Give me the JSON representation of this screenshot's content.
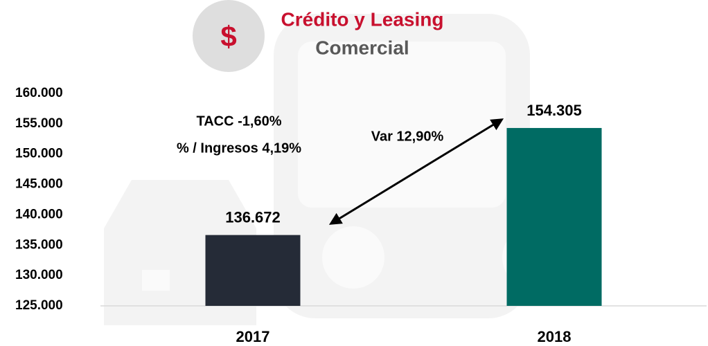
{
  "icon": "$",
  "chart_data": {
    "type": "bar",
    "title": "Crédito y Leasing",
    "subtitle": "Comercial",
    "categories": [
      "2017",
      "2018"
    ],
    "values": [
      136672,
      154305
    ],
    "value_labels": [
      "136.672",
      "154.305"
    ],
    "colors": [
      "#252b37",
      "#006b63"
    ],
    "ylim": [
      125000,
      160000
    ],
    "yticks": [
      {
        "value": 125000,
        "label": "125.000"
      },
      {
        "value": 130000,
        "label": "130.000"
      },
      {
        "value": 135000,
        "label": "135.000"
      },
      {
        "value": 140000,
        "label": "140.000"
      },
      {
        "value": 145000,
        "label": "145.000"
      },
      {
        "value": 150000,
        "label": "150.000"
      },
      {
        "value": 155000,
        "label": "155.000"
      },
      {
        "value": 160000,
        "label": "160.000"
      }
    ],
    "grid": false,
    "annotations": [
      "TACC -1,60%",
      "% / Ingresos 4,19%",
      "Var 12,90%"
    ]
  }
}
